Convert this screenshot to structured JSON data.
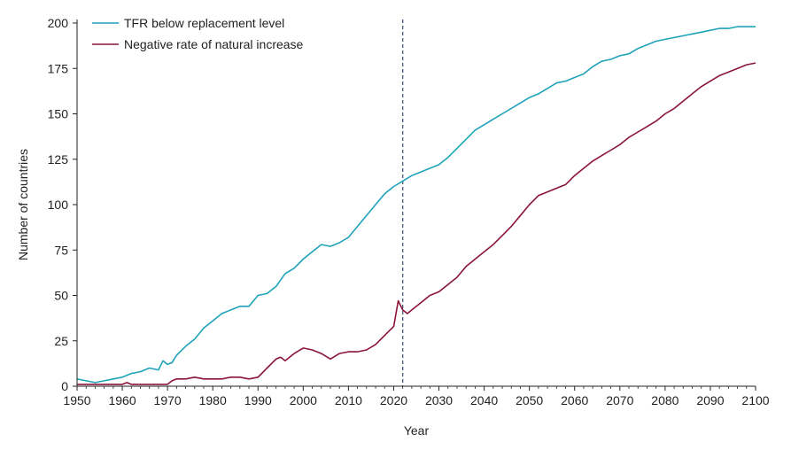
{
  "chart_data": {
    "type": "line",
    "title": "",
    "xlabel": "Year",
    "ylabel": "Number of countries",
    "xlim": [
      1950,
      2100
    ],
    "ylim": [
      0,
      200
    ],
    "x_ticks": [
      1950,
      1960,
      1970,
      1980,
      1990,
      2000,
      2010,
      2020,
      2030,
      2040,
      2050,
      2060,
      2070,
      2080,
      2090,
      2100
    ],
    "y_ticks": [
      0,
      25,
      50,
      75,
      100,
      125,
      150,
      175,
      200
    ],
    "x_tick_labels": [
      "1950",
      "1960",
      "1970",
      "1980",
      "1990",
      "2000",
      "2010",
      "2020",
      "2030",
      "2040",
      "2050",
      "2060",
      "2070",
      "2080",
      "2090",
      "2100"
    ],
    "y_tick_labels": [
      "0",
      "25",
      "50",
      "75",
      "100",
      "125",
      "150",
      "175",
      "200"
    ],
    "grid": false,
    "legend_position": "top-left",
    "reference_line": {
      "x": 2022,
      "style": "dashed",
      "color": "#4a5a78"
    },
    "series": [
      {
        "name": "TFR below replacement level",
        "color": "#1fa3b8",
        "x": [
          1950,
          1952,
          1954,
          1956,
          1958,
          1960,
          1962,
          1964,
          1966,
          1968,
          1969,
          1970,
          1971,
          1972,
          1974,
          1976,
          1978,
          1980,
          1982,
          1984,
          1986,
          1988,
          1990,
          1992,
          1994,
          1996,
          1998,
          2000,
          2002,
          2004,
          2006,
          2008,
          2010,
          2012,
          2014,
          2016,
          2018,
          2020,
          2022,
          2024,
          2026,
          2028,
          2030,
          2032,
          2034,
          2036,
          2038,
          2040,
          2042,
          2044,
          2046,
          2048,
          2050,
          2052,
          2054,
          2056,
          2058,
          2060,
          2062,
          2064,
          2066,
          2068,
          2070,
          2072,
          2074,
          2076,
          2078,
          2080,
          2082,
          2084,
          2086,
          2088,
          2090,
          2092,
          2094,
          2096,
          2098,
          2100
        ],
        "values": [
          4,
          3,
          2,
          3,
          4,
          5,
          7,
          8,
          10,
          9,
          14,
          12,
          13,
          17,
          22,
          26,
          32,
          36,
          40,
          42,
          44,
          44,
          50,
          51,
          55,
          62,
          65,
          70,
          74,
          78,
          77,
          79,
          82,
          88,
          94,
          100,
          106,
          110,
          113,
          116,
          118,
          120,
          122,
          126,
          131,
          136,
          141,
          144,
          147,
          150,
          153,
          156,
          159,
          161,
          164,
          167,
          168,
          170,
          172,
          176,
          179,
          180,
          182,
          183,
          186,
          188,
          190,
          191,
          192,
          193,
          194,
          195,
          196,
          197,
          197,
          198,
          198,
          198
        ]
      },
      {
        "name": "Negative rate of natural increase",
        "color": "#8a1538",
        "x": [
          1950,
          1955,
          1960,
          1961,
          1962,
          1965,
          1970,
          1971,
          1972,
          1974,
          1976,
          1978,
          1980,
          1982,
          1984,
          1986,
          1988,
          1990,
          1992,
          1994,
          1995,
          1996,
          1998,
          2000,
          2002,
          2004,
          2006,
          2008,
          2010,
          2012,
          2014,
          2016,
          2018,
          2020,
          2021,
          2022,
          2023,
          2024,
          2026,
          2028,
          2030,
          2032,
          2034,
          2036,
          2038,
          2040,
          2042,
          2044,
          2046,
          2048,
          2050,
          2052,
          2054,
          2056,
          2058,
          2060,
          2062,
          2064,
          2066,
          2068,
          2070,
          2072,
          2074,
          2076,
          2078,
          2080,
          2082,
          2084,
          2086,
          2088,
          2090,
          2092,
          2094,
          2096,
          2098,
          2100
        ],
        "values": [
          1,
          1,
          1,
          2,
          1,
          1,
          1,
          3,
          4,
          4,
          5,
          4,
          4,
          4,
          5,
          5,
          4,
          5,
          10,
          15,
          16,
          14,
          18,
          21,
          20,
          18,
          15,
          18,
          19,
          19,
          20,
          23,
          28,
          33,
          47,
          42,
          40,
          42,
          46,
          50,
          52,
          56,
          60,
          66,
          70,
          74,
          78,
          83,
          88,
          94,
          100,
          105,
          107,
          109,
          111,
          116,
          120,
          124,
          127,
          130,
          133,
          137,
          140,
          143,
          146,
          150,
          153,
          157,
          161,
          165,
          168,
          171,
          173,
          175,
          177,
          178
        ]
      }
    ]
  }
}
